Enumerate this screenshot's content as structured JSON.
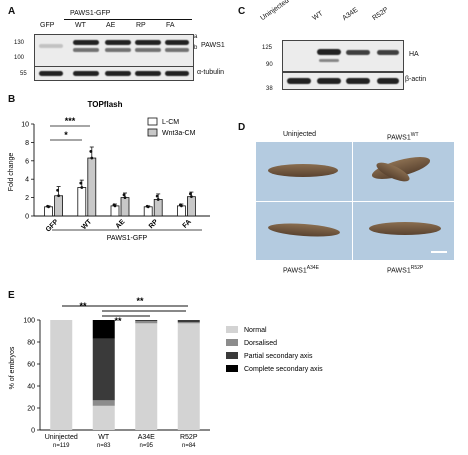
{
  "panels": {
    "A": "A",
    "B": "B",
    "C": "C",
    "D": "D",
    "E": "E"
  },
  "panelA": {
    "group_label": "PAWS1-GFP",
    "lanes": [
      "GFP",
      "WT",
      "AE",
      "RP",
      "FA"
    ],
    "mw_upper": [
      "130",
      "100"
    ],
    "mw_lower": "55",
    "label_protein": "PAWS1",
    "label_loading": "α-tubulin",
    "marker_a": "a",
    "marker_b": "b"
  },
  "panelB": {
    "title": "TOPflash",
    "ylabel": "Fold change",
    "group_label": "PAWS1-GFP",
    "sig_1": "*",
    "sig_2": "***",
    "legend": [
      "L-CM",
      "Wnt3a-CM"
    ]
  },
  "panelC": {
    "lanes": [
      "Uninjected",
      "WT",
      "A34E",
      "R52P"
    ],
    "mw_upper": [
      "125",
      "90"
    ],
    "mw_lower": "38",
    "label_protein": "HA",
    "label_loading": "β-actin"
  },
  "panelD": {
    "labels": {
      "tl": "Uninjected",
      "tr_main": "PAWS1",
      "tr_sup": "WT",
      "bl_main": "PAWS1",
      "bl_sup": "A34E",
      "br_main": "PAWS1",
      "br_sup": "R52P"
    }
  },
  "panelE": {
    "ylabel": "% of embryos",
    "sig_1": "**",
    "sig_2": "**",
    "sig_3": "**",
    "categories": [
      "Uninjected",
      "WT",
      "A34E",
      "R52P"
    ],
    "counts": [
      "n=119",
      "n=83",
      "n=95",
      "n=84"
    ],
    "legend": [
      "Normal",
      "Dorsalised",
      "Partial secondary axis",
      "Complete secondary axis"
    ]
  },
  "colors": {
    "normal": "#d3d3d3",
    "dorsalised": "#8c8c8c",
    "partial": "#3a3a3a",
    "complete": "#000000",
    "wnt_bar": "#c8c8c8"
  },
  "chart_data": [
    {
      "type": "bar",
      "panel": "B",
      "title": "TOPflash",
      "ylabel": "Fold change",
      "categories": [
        "GFP",
        "WT",
        "AE",
        "RP",
        "FA"
      ],
      "series": [
        {
          "name": "L-CM",
          "values": [
            1.0,
            3.1,
            1.1,
            1.0,
            1.1
          ]
        },
        {
          "name": "Wnt3a-CM",
          "values": [
            2.2,
            6.3,
            2.0,
            1.8,
            2.1
          ]
        }
      ],
      "errors": [
        [
          0.1,
          0.8,
          0.2,
          0.1,
          0.2
        ],
        [
          1.0,
          1.2,
          0.5,
          0.6,
          0.5
        ]
      ],
      "ylim": [
        0,
        10
      ],
      "yticks": [
        0,
        2,
        4,
        6,
        8,
        10
      ],
      "legend_position": "top-right"
    },
    {
      "type": "bar",
      "stacked": true,
      "panel": "E",
      "ylabel": "% of embryos",
      "categories": [
        "Uninjected",
        "WT",
        "A34E",
        "R52P"
      ],
      "series": [
        {
          "name": "Normal",
          "values": [
            100,
            22,
            97,
            97
          ]
        },
        {
          "name": "Dorsalised",
          "values": [
            0,
            5,
            2,
            1
          ]
        },
        {
          "name": "Partial secondary axis",
          "values": [
            0,
            56,
            1,
            2
          ]
        },
        {
          "name": "Complete secondary axis",
          "values": [
            0,
            17,
            0,
            0
          ]
        }
      ],
      "ylim": [
        0,
        100
      ],
      "yticks": [
        0,
        20,
        40,
        60,
        80,
        100
      ],
      "legend_position": "right"
    }
  ]
}
